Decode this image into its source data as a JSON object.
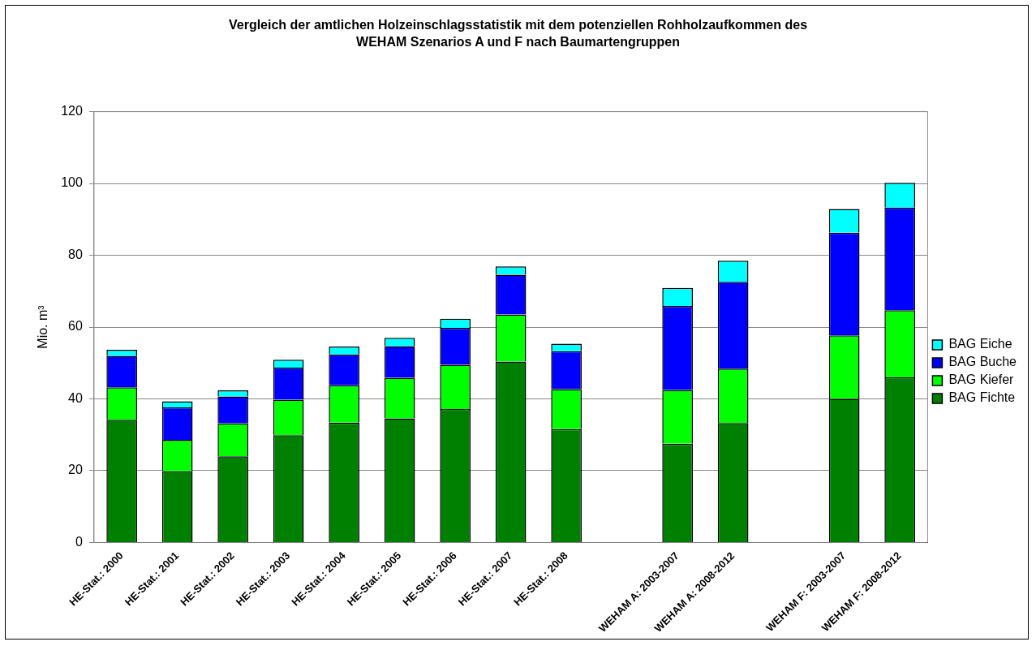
{
  "chart_data": {
    "type": "bar",
    "stacked": true,
    "title": "Vergleich der amtlichen Holzeinschlagsstatistik mit dem potenziellen Rohholzaufkommen des WEHAM Szenarios A und F nach Baumartengruppen",
    "ylabel": "Mio. m³",
    "categories": [
      "HE-Stat.: 2000",
      "HE-Stat.: 2001",
      "HE-Stat.: 2002",
      "HE-Stat.: 2003",
      "HE-Stat.: 2004",
      "HE-Stat.: 2005",
      "HE-Stat.: 2006",
      "HE-Stat.: 2007",
      "HE-Stat.: 2008",
      null,
      "WEHAM A: 2003-2007",
      "WEHAM A: 2008-2012",
      null,
      "WEHAM F: 2003-2007",
      "WEHAM F: 2008-2012"
    ],
    "series": [
      {
        "name": "BAG Fichte",
        "color": "#008000",
        "values": [
          34.2,
          19.8,
          24.0,
          29.9,
          33.4,
          34.6,
          37.2,
          50.4,
          31.6,
          null,
          27.5,
          33.3,
          null,
          40.0,
          46.0
        ]
      },
      {
        "name": "BAG Kiefer",
        "color": "#00ff00",
        "values": [
          9.0,
          8.8,
          9.2,
          9.9,
          10.4,
          11.3,
          12.3,
          13.1,
          11.1,
          null,
          15.0,
          15.1,
          null,
          17.7,
          18.7
        ]
      },
      {
        "name": "BAG Buche",
        "color": "#0000ff",
        "values": [
          8.8,
          9.0,
          7.5,
          8.9,
          8.6,
          8.8,
          10.3,
          11.1,
          10.6,
          null,
          23.4,
          24.2,
          null,
          28.6,
          28.6
        ]
      },
      {
        "name": "BAG Eiche",
        "color": "#00ffff",
        "values": [
          1.7,
          1.7,
          1.7,
          2.2,
          2.2,
          2.3,
          2.5,
          2.3,
          2.1,
          null,
          5.0,
          5.9,
          null,
          6.6,
          6.9
        ]
      }
    ],
    "ylim": [
      0,
      120
    ],
    "yticks": [
      0,
      20,
      40,
      60,
      80,
      100,
      120
    ],
    "grid": "y",
    "legend": "right"
  }
}
